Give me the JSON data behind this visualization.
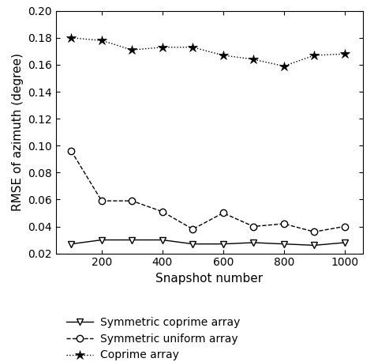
{
  "x": [
    100,
    200,
    300,
    400,
    500,
    600,
    700,
    800,
    900,
    1000
  ],
  "symmetric_coprime": [
    0.027,
    0.03,
    0.03,
    0.03,
    0.027,
    0.027,
    0.028,
    0.027,
    0.026,
    0.028
  ],
  "symmetric_uniform": [
    0.096,
    0.059,
    0.059,
    0.051,
    0.038,
    0.05,
    0.04,
    0.042,
    0.036,
    0.04
  ],
  "coprime": [
    0.18,
    0.178,
    0.171,
    0.173,
    0.173,
    0.167,
    0.164,
    0.159,
    0.167,
    0.168
  ],
  "xlabel": "Snapshot number",
  "ylabel": "RMSE of azimuth (degree)",
  "xlim": [
    50,
    1060
  ],
  "ylim": [
    0.02,
    0.2
  ],
  "yticks": [
    0.02,
    0.04,
    0.06,
    0.08,
    0.1,
    0.12,
    0.14,
    0.16,
    0.18,
    0.2
  ],
  "xticks": [
    200,
    400,
    600,
    800,
    1000
  ],
  "legend_labels": [
    "Symmetric coprime array",
    "Symmetric uniform array",
    "Coprime array"
  ],
  "line_color": "#000000",
  "background_color": "#ffffff"
}
